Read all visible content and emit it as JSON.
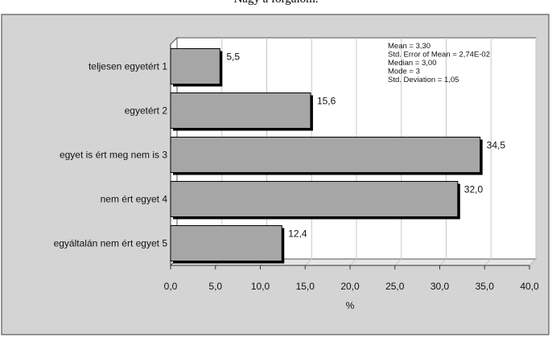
{
  "chart_data": {
    "type": "bar",
    "orientation": "horizontal",
    "title": "Nagy a forgalom.",
    "categories": [
      "teljesen egyetért 1",
      "egyetért 2",
      "egyet is ért meg nem is 3",
      "nem ért egyet 4",
      "egyáltalán nem ért egyet 5"
    ],
    "values": [
      5.5,
      15.6,
      34.5,
      32.0,
      12.4
    ],
    "value_labels": [
      "5,5",
      "15,6",
      "34,5",
      "32,0",
      "12,4"
    ],
    "xlabel": "%",
    "ylabel": "",
    "xlim": [
      0,
      40
    ],
    "x_ticks": [
      0,
      5,
      10,
      15,
      20,
      25,
      30,
      35,
      40
    ],
    "x_tick_labels": [
      "0,0",
      "5,0",
      "10,0",
      "15,0",
      "20,0",
      "25,0",
      "30,0",
      "35,0",
      "40,0"
    ],
    "grid": true,
    "legend": "none",
    "stats": [
      "Mean = 3,30",
      "Std. Error of Mean = 2,74E-02",
      "Median = 3,00",
      "Mode = 3",
      "Std. Deviation = 1,05"
    ],
    "colors": {
      "bar_fill": "#a6a6a6",
      "bar_edge": "#000000",
      "frame_fill": "#d4d4d4",
      "plot_bg": "#ffffff",
      "gridline": "#c8c8c8",
      "floor": "#e6e6e6"
    }
  }
}
